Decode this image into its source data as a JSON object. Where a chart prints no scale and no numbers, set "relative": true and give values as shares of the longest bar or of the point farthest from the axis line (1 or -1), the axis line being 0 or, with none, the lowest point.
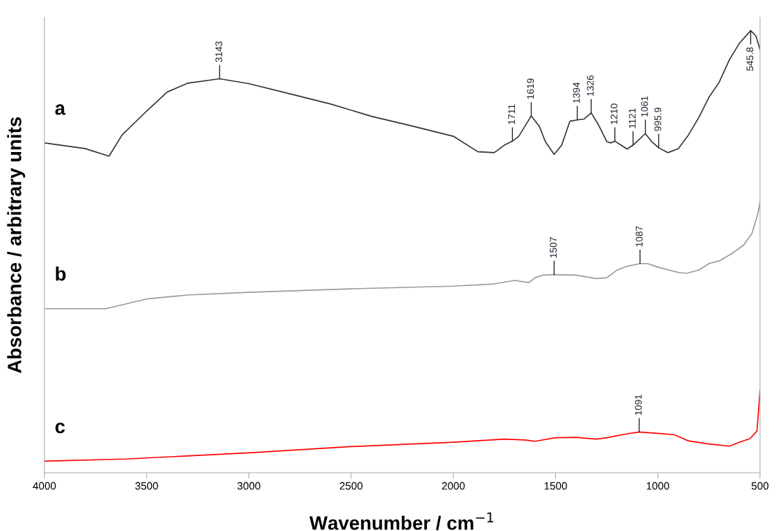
{
  "chart_data": {
    "type": "line",
    "relative": true,
    "xlabel": "Wavenumber / cm$^{−1}$",
    "ylabel": "Absorbance / arbitrary units",
    "xlim": [
      4000,
      500
    ],
    "xticks": [
      4000,
      3500,
      3000,
      2500,
      2000,
      1500,
      1000,
      500
    ],
    "grid": false,
    "legend": false,
    "tick_labels": "x",
    "series": [
      {
        "name": "a",
        "color": "#333333",
        "x": [
          4000,
          3800,
          3684,
          3620,
          3500,
          3400,
          3300,
          3143,
          3000,
          2800,
          2600,
          2400,
          2200,
          2000,
          1880,
          1800,
          1750,
          1711,
          1680,
          1619,
          1580,
          1550,
          1507,
          1470,
          1430,
          1394,
          1360,
          1326,
          1290,
          1250,
          1230,
          1210,
          1180,
          1150,
          1121,
          1061,
          1030,
          995.9,
          950,
          900,
          850,
          800,
          750,
          700,
          650,
          600,
          545.8,
          520,
          500
        ],
        "values": [
          0.746,
          0.733,
          0.716,
          0.764,
          0.818,
          0.861,
          0.881,
          0.891,
          0.88,
          0.857,
          0.834,
          0.806,
          0.784,
          0.761,
          0.726,
          0.724,
          0.741,
          0.75,
          0.761,
          0.807,
          0.784,
          0.749,
          0.72,
          0.741,
          0.795,
          0.798,
          0.8,
          0.814,
          0.787,
          0.749,
          0.746,
          0.75,
          0.741,
          0.732,
          0.741,
          0.767,
          0.749,
          0.735,
          0.724,
          0.733,
          0.764,
          0.803,
          0.849,
          0.883,
          0.934,
          0.972,
          1.0,
          0.988,
          0.957
        ]
      },
      {
        "name": "b",
        "color": "#999999",
        "x": [
          4000,
          3700,
          3600,
          3500,
          3300,
          3000,
          2500,
          2000,
          1800,
          1700,
          1630,
          1600,
          1560,
          1507,
          1400,
          1300,
          1250,
          1200,
          1150,
          1087,
          1050,
          1000,
          900,
          860,
          800,
          750,
          700,
          640,
          580,
          540,
          510,
          500
        ],
        "values": [
          0.371,
          0.371,
          0.382,
          0.393,
          0.402,
          0.408,
          0.416,
          0.422,
          0.427,
          0.435,
          0.43,
          0.441,
          0.447,
          0.448,
          0.447,
          0.439,
          0.441,
          0.458,
          0.467,
          0.473,
          0.473,
          0.465,
          0.453,
          0.451,
          0.458,
          0.473,
          0.479,
          0.495,
          0.515,
          0.541,
          0.587,
          0.613
        ]
      },
      {
        "name": "c",
        "color": "#ff0000",
        "x": [
          4000,
          3600,
          3000,
          2500,
          2000,
          1750,
          1650,
          1600,
          1500,
          1400,
          1300,
          1250,
          1150,
          1091,
          1000,
          920,
          850,
          750,
          650,
          600,
          550,
          515,
          500
        ],
        "values": [
          0.026,
          0.031,
          0.045,
          0.059,
          0.069,
          0.076,
          0.074,
          0.071,
          0.079,
          0.08,
          0.076,
          0.079,
          0.088,
          0.092,
          0.089,
          0.086,
          0.072,
          0.065,
          0.06,
          0.069,
          0.077,
          0.094,
          0.186
        ]
      }
    ],
    "annotations": [
      {
        "text": "3143",
        "x": 3143,
        "y": 0.891
      },
      {
        "text": "1711",
        "x": 1711,
        "y": 0.75
      },
      {
        "text": "1619",
        "x": 1619,
        "y": 0.807
      },
      {
        "text": "1394",
        "x": 1394,
        "y": 0.798
      },
      {
        "text": "1326",
        "x": 1326,
        "y": 0.814
      },
      {
        "text": "1210",
        "x": 1210,
        "y": 0.75
      },
      {
        "text": "1121",
        "x": 1121,
        "y": 0.741
      },
      {
        "text": "1061",
        "x": 1061,
        "y": 0.767
      },
      {
        "text": "995.9",
        "x": 995.9,
        "y": 0.735
      },
      {
        "text": "545.8",
        "x": 545.8,
        "y": 1.0
      },
      {
        "text": "1507",
        "x": 1507,
        "y": 0.448
      },
      {
        "text": "1087",
        "x": 1087,
        "y": 0.473
      },
      {
        "text": "1091",
        "x": 1091,
        "y": 0.092
      }
    ]
  }
}
